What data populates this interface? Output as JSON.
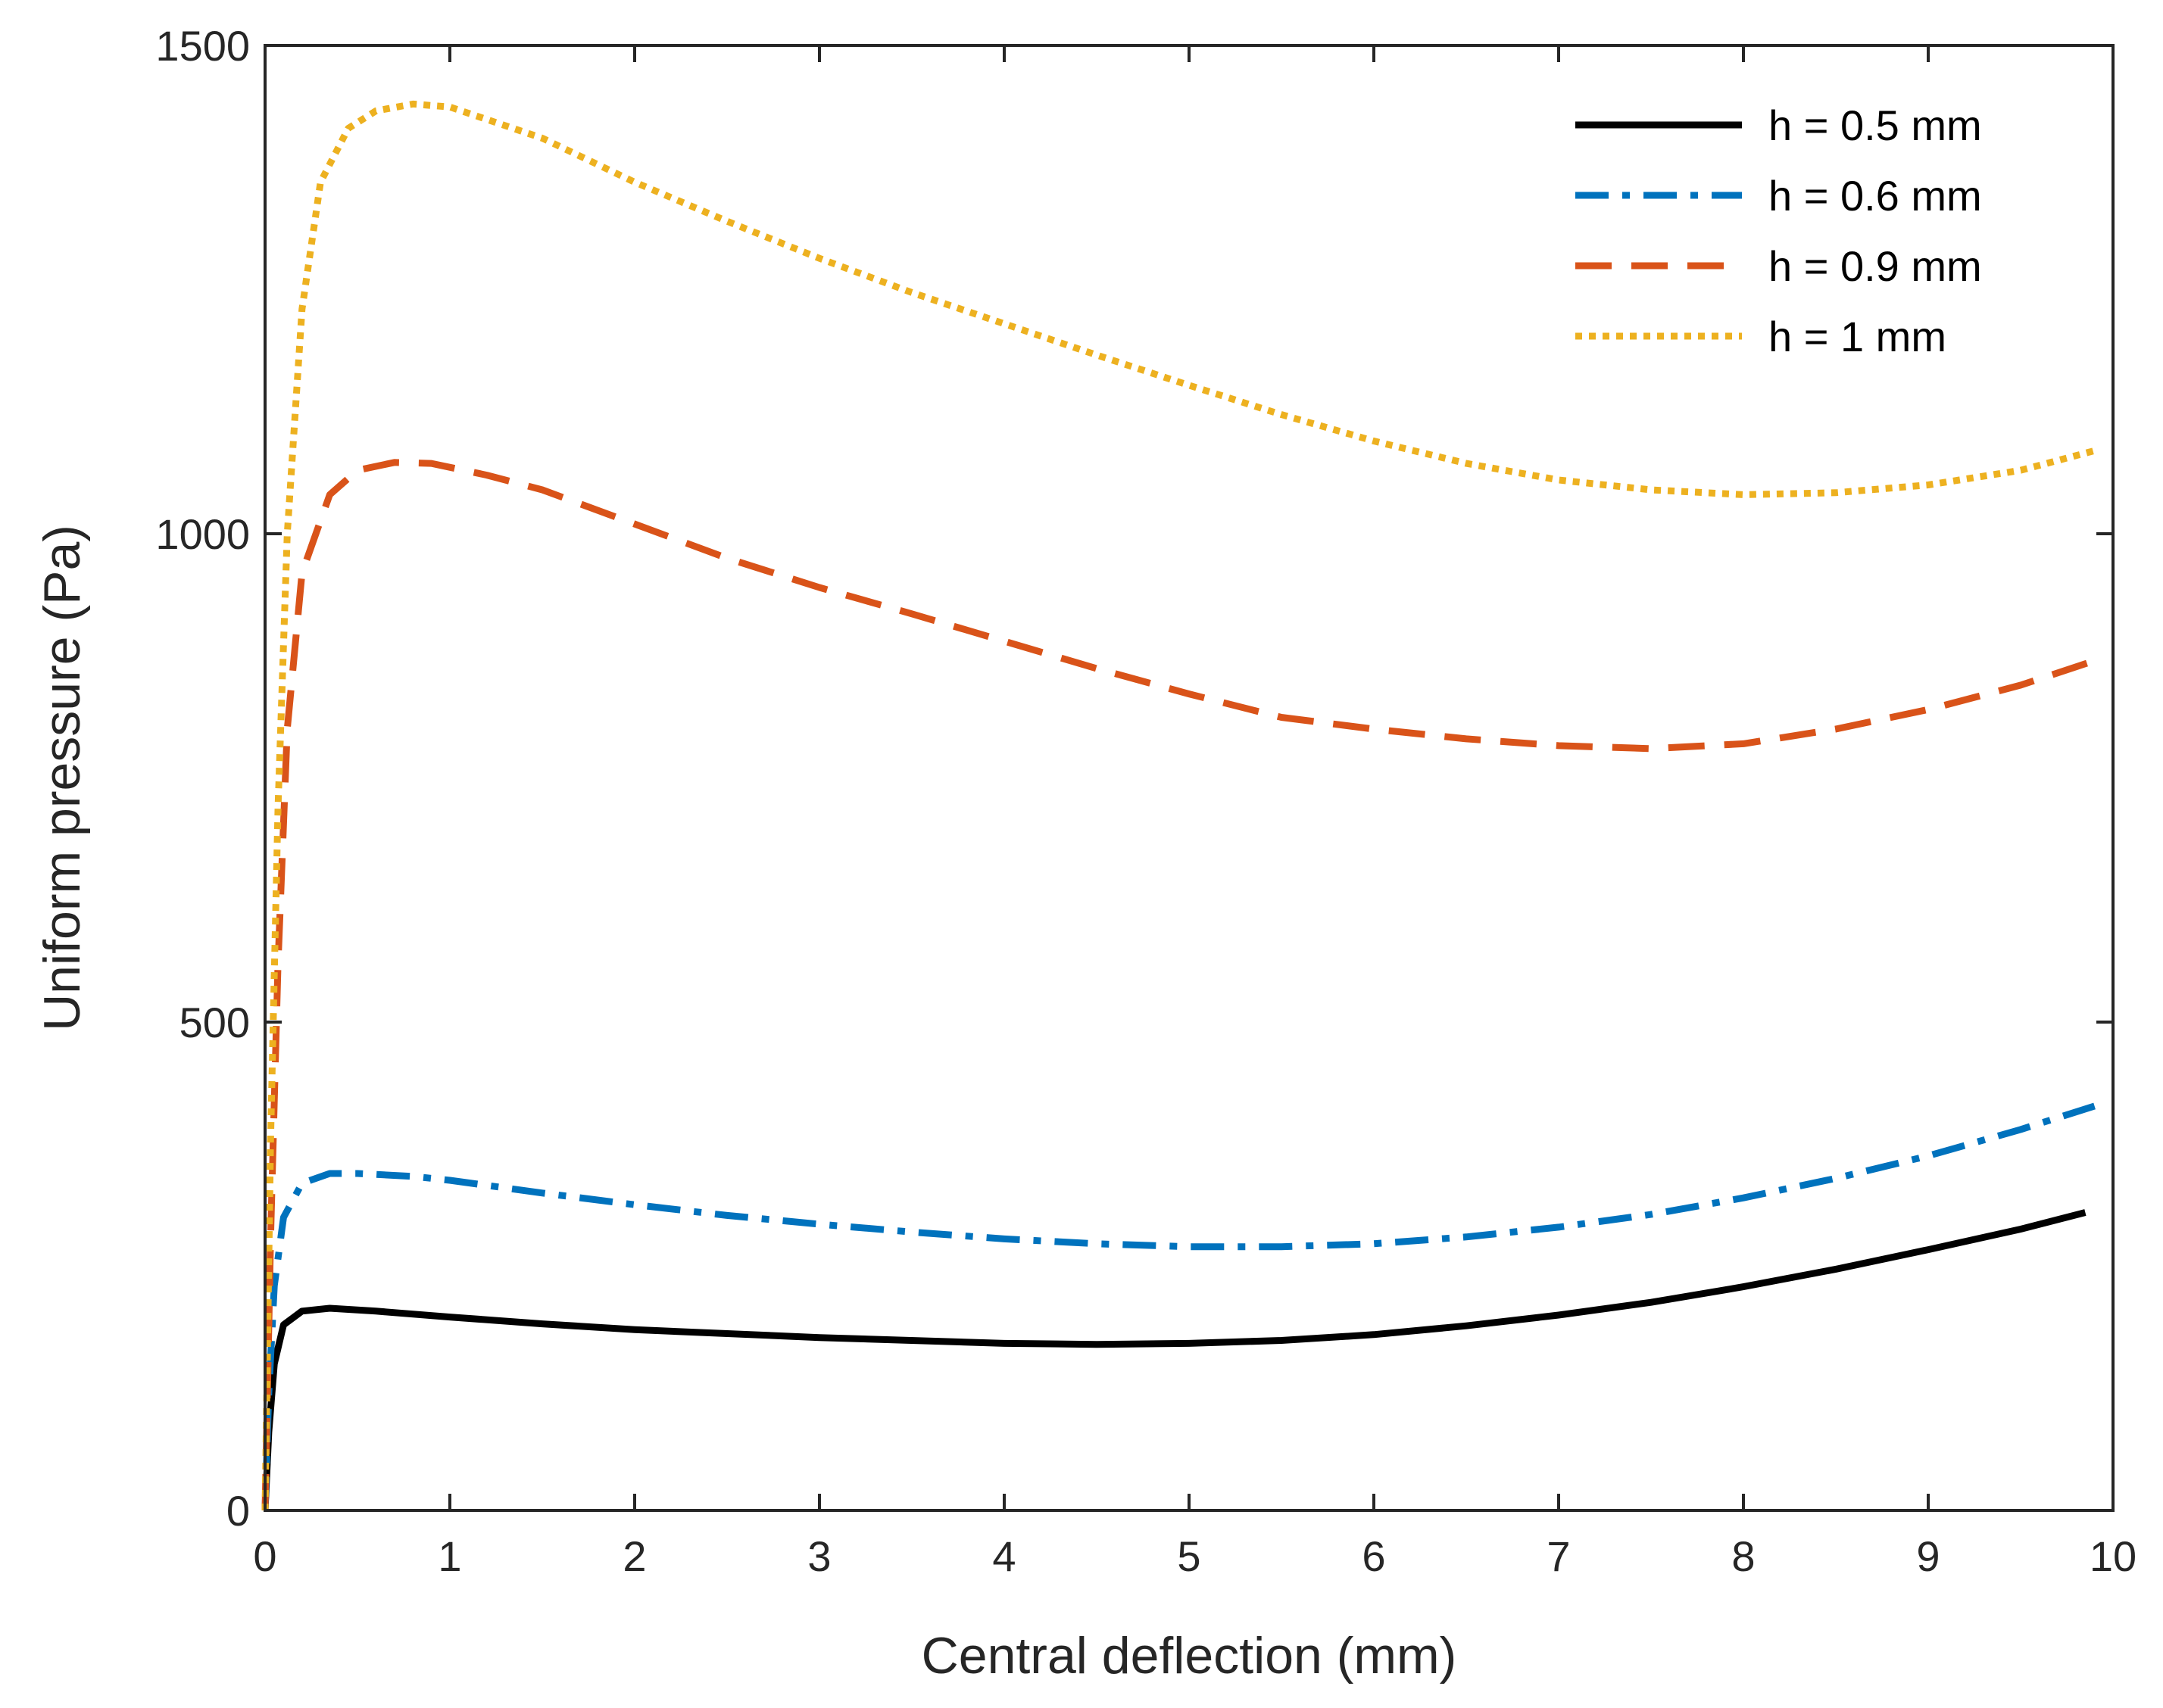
{
  "chart_data": {
    "type": "line",
    "title": "",
    "xlabel": "Central deflection (mm)",
    "ylabel": "Uniform pressure (Pa)",
    "xlim": [
      0,
      10
    ],
    "ylim": [
      0,
      1500
    ],
    "xticks": [
      0,
      1,
      2,
      3,
      4,
      5,
      6,
      7,
      8,
      9,
      10
    ],
    "yticks": [
      0,
      500,
      1000,
      1500
    ],
    "xtick_labels": [
      "0",
      "1",
      "2",
      "3",
      "4",
      "5",
      "6",
      "7",
      "8",
      "9",
      "10"
    ],
    "ytick_labels": [
      "0",
      "500",
      "1000",
      "1500"
    ],
    "grid": false,
    "legend_position": "top-right",
    "series": [
      {
        "name": "h = 0.5 mm",
        "color": "#000000",
        "style": "solid",
        "points": [
          [
            0,
            0
          ],
          [
            0.02,
            80
          ],
          [
            0.05,
            150
          ],
          [
            0.1,
            190
          ],
          [
            0.2,
            204
          ],
          [
            0.35,
            207
          ],
          [
            0.6,
            204
          ],
          [
            1,
            198
          ],
          [
            1.5,
            191
          ],
          [
            2,
            185
          ],
          [
            3,
            177
          ],
          [
            4,
            171
          ],
          [
            4.5,
            170
          ],
          [
            5,
            171
          ],
          [
            5.5,
            174
          ],
          [
            6,
            180
          ],
          [
            6.5,
            189
          ],
          [
            7,
            200
          ],
          [
            7.5,
            213
          ],
          [
            8,
            229
          ],
          [
            8.5,
            247
          ],
          [
            9,
            267
          ],
          [
            9.5,
            288
          ],
          [
            9.85,
            305
          ]
        ]
      },
      {
        "name": "h = 0.6 mm",
        "color": "#0072BD",
        "style": "dashdot",
        "points": [
          [
            0,
            0
          ],
          [
            0.02,
            120
          ],
          [
            0.05,
            230
          ],
          [
            0.1,
            300
          ],
          [
            0.2,
            335
          ],
          [
            0.35,
            345
          ],
          [
            0.5,
            345
          ],
          [
            0.8,
            342
          ],
          [
            1,
            338
          ],
          [
            1.5,
            325
          ],
          [
            2,
            313
          ],
          [
            2.5,
            302
          ],
          [
            3,
            293
          ],
          [
            3.5,
            285
          ],
          [
            4,
            278
          ],
          [
            4.5,
            273
          ],
          [
            5,
            270
          ],
          [
            5.5,
            270
          ],
          [
            6,
            273
          ],
          [
            6.5,
            280
          ],
          [
            7,
            290
          ],
          [
            7.5,
            303
          ],
          [
            8,
            320
          ],
          [
            8.5,
            340
          ],
          [
            9,
            363
          ],
          [
            9.5,
            390
          ],
          [
            9.9,
            414
          ]
        ]
      },
      {
        "name": "h = 0.9 mm",
        "color": "#D95319",
        "style": "dashed",
        "points": [
          [
            0,
            0
          ],
          [
            0.03,
            280
          ],
          [
            0.07,
            560
          ],
          [
            0.12,
            800
          ],
          [
            0.2,
            960
          ],
          [
            0.35,
            1040
          ],
          [
            0.5,
            1065
          ],
          [
            0.7,
            1073
          ],
          [
            0.9,
            1072
          ],
          [
            1.2,
            1060
          ],
          [
            1.5,
            1045
          ],
          [
            2,
            1010
          ],
          [
            2.5,
            975
          ],
          [
            3,
            945
          ],
          [
            3.5,
            918
          ],
          [
            4,
            890
          ],
          [
            4.5,
            862
          ],
          [
            5,
            836
          ],
          [
            5.5,
            812
          ],
          [
            6,
            800
          ],
          [
            6.5,
            790
          ],
          [
            7,
            783
          ],
          [
            7.5,
            780
          ],
          [
            8,
            785
          ],
          [
            8.5,
            800
          ],
          [
            9,
            820
          ],
          [
            9.5,
            845
          ],
          [
            9.9,
            870
          ]
        ]
      },
      {
        "name": "h = 1 mm",
        "color": "#EDB120",
        "style": "dotted",
        "points": [
          [
            0,
            0
          ],
          [
            0.03,
            380
          ],
          [
            0.07,
            720
          ],
          [
            0.12,
            1000
          ],
          [
            0.2,
            1230
          ],
          [
            0.3,
            1360
          ],
          [
            0.45,
            1415
          ],
          [
            0.6,
            1433
          ],
          [
            0.8,
            1440
          ],
          [
            1,
            1437
          ],
          [
            1.5,
            1405
          ],
          [
            2,
            1360
          ],
          [
            2.5,
            1320
          ],
          [
            3,
            1282
          ],
          [
            3.5,
            1247
          ],
          [
            4,
            1215
          ],
          [
            4.5,
            1183
          ],
          [
            5,
            1152
          ],
          [
            5.5,
            1122
          ],
          [
            6,
            1095
          ],
          [
            6.5,
            1072
          ],
          [
            7,
            1055
          ],
          [
            7.5,
            1045
          ],
          [
            8,
            1040
          ],
          [
            8.5,
            1042
          ],
          [
            9,
            1050
          ],
          [
            9.5,
            1065
          ],
          [
            9.9,
            1085
          ]
        ]
      }
    ]
  }
}
